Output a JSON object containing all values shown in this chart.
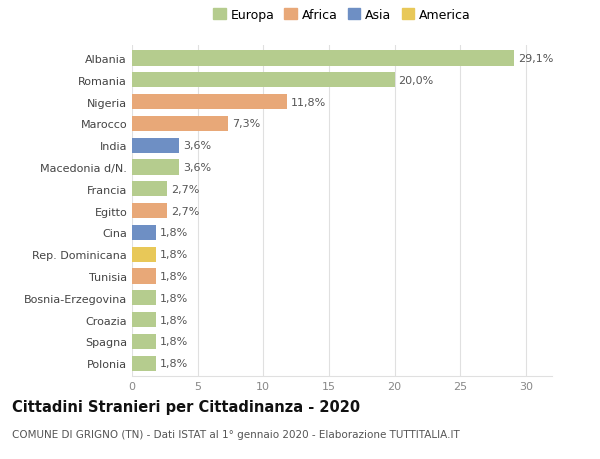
{
  "categories": [
    "Albania",
    "Romania",
    "Nigeria",
    "Marocco",
    "India",
    "Macedonia d/N.",
    "Francia",
    "Egitto",
    "Cina",
    "Rep. Dominicana",
    "Tunisia",
    "Bosnia-Erzegovina",
    "Croazia",
    "Spagna",
    "Polonia"
  ],
  "values": [
    29.1,
    20.0,
    11.8,
    7.3,
    3.6,
    3.6,
    2.7,
    2.7,
    1.8,
    1.8,
    1.8,
    1.8,
    1.8,
    1.8,
    1.8
  ],
  "labels": [
    "29,1%",
    "20,0%",
    "11,8%",
    "7,3%",
    "3,6%",
    "3,6%",
    "2,7%",
    "2,7%",
    "1,8%",
    "1,8%",
    "1,8%",
    "1,8%",
    "1,8%",
    "1,8%",
    "1,8%"
  ],
  "colors": [
    "#b5cc8e",
    "#b5cc8e",
    "#e8a878",
    "#e8a878",
    "#6e8fc4",
    "#b5cc8e",
    "#b5cc8e",
    "#e8a878",
    "#6e8fc4",
    "#e8c858",
    "#e8a878",
    "#b5cc8e",
    "#b5cc8e",
    "#b5cc8e",
    "#b5cc8e"
  ],
  "legend_labels": [
    "Europa",
    "Africa",
    "Asia",
    "America"
  ],
  "legend_colors": [
    "#b5cc8e",
    "#e8a878",
    "#6e8fc4",
    "#e8c858"
  ],
  "title": "Cittadini Stranieri per Cittadinanza - 2020",
  "subtitle": "COMUNE DI GRIGNO (TN) - Dati ISTAT al 1° gennaio 2020 - Elaborazione TUTTITALIA.IT",
  "xlim": [
    0,
    32
  ],
  "xticks": [
    0,
    5,
    10,
    15,
    20,
    25,
    30
  ],
  "bg_color": "#ffffff",
  "grid_color": "#e0e0e0",
  "bar_height": 0.7,
  "label_fontsize": 8,
  "tick_fontsize": 8,
  "title_fontsize": 10.5,
  "subtitle_fontsize": 7.5
}
